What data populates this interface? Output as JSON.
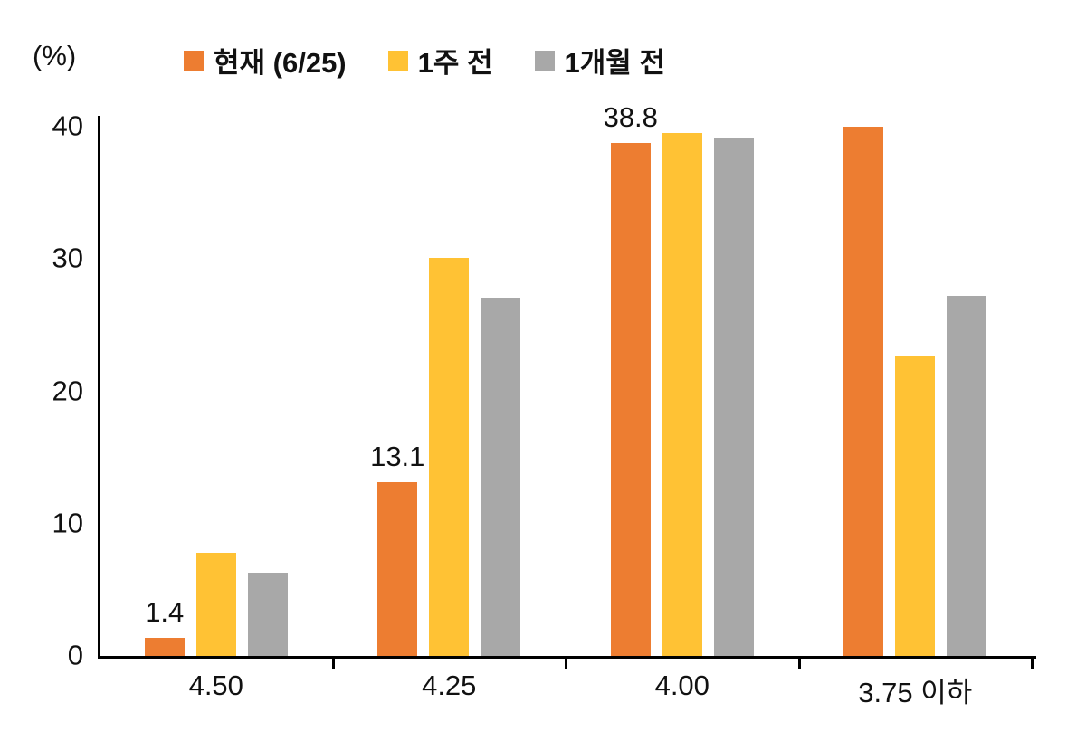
{
  "chart_data": {
    "type": "bar",
    "title": "",
    "unit_label": "(%)",
    "categories": [
      "4.50",
      "4.25",
      "4.00",
      "3.75 이하"
    ],
    "series": [
      {
        "name": "현재 (6/25)",
        "color": "#ED7D31",
        "values": [
          1.4,
          13.1,
          38.8,
          40.0
        ]
      },
      {
        "name": "1주 전",
        "color": "#FFC234",
        "values": [
          7.8,
          30.1,
          39.5,
          22.6
        ]
      },
      {
        "name": "1개월 전",
        "color": "#A8A8A8",
        "values": [
          6.3,
          27.1,
          39.2,
          27.2
        ]
      }
    ],
    "data_labels": [
      {
        "series": 0,
        "category": 0,
        "text": "1.4"
      },
      {
        "series": 0,
        "category": 1,
        "text": "13.1"
      },
      {
        "series": 0,
        "category": 2,
        "text": "38.8"
      }
    ],
    "yticks": [
      0,
      10,
      20,
      30,
      40
    ],
    "ylim": [
      0,
      41
    ],
    "grid": false,
    "legend_position": "top",
    "axis_color": "#000000",
    "background_color": "#ffffff"
  }
}
